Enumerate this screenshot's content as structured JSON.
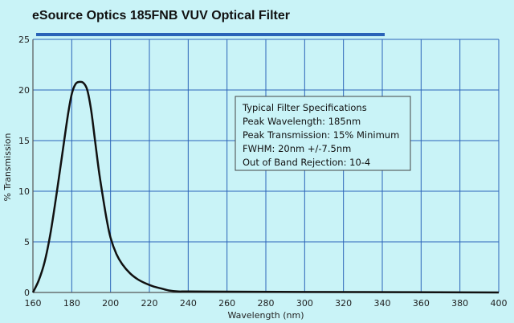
{
  "chart_data": {
    "type": "line",
    "title": "eSource Optics 185FNB VUV Optical Filter",
    "xlabel": "Wavelength (nm)",
    "ylabel": "% Transmission",
    "xlim": [
      160,
      400
    ],
    "ylim": [
      0,
      25
    ],
    "x_ticks": [
      160,
      180,
      200,
      220,
      240,
      260,
      280,
      300,
      320,
      340,
      360,
      380,
      400
    ],
    "y_ticks": [
      0,
      5,
      10,
      15,
      20,
      25
    ],
    "grid": true,
    "series": [
      {
        "x": [
          160,
          163,
          166,
          169,
          172,
          175,
          178,
          180,
          182,
          184,
          186,
          188,
          190,
          192,
          194,
          196,
          198,
          200,
          203,
          206,
          210,
          214,
          218,
          222,
          226,
          230,
          235,
          240,
          260,
          300,
          350,
          400
        ],
        "y": [
          0,
          1.2,
          3.0,
          5.8,
          9.5,
          13.5,
          17.5,
          19.6,
          20.6,
          20.8,
          20.7,
          20.0,
          18.0,
          15.0,
          12.0,
          9.5,
          7.2,
          5.4,
          3.8,
          2.8,
          1.9,
          1.3,
          0.9,
          0.6,
          0.4,
          0.2,
          0.1,
          0.1,
          0.08,
          0.05,
          0.03,
          0
        ]
      }
    ],
    "annotation": {
      "lines": [
        "Typical Filter Specifications",
        "Peak Wavelength: 185nm",
        "Peak Transmission: 15% Minimum",
        "FWHM: 20nm +/-7.5nm",
        "Out of Band Rejection: 10-4"
      ]
    }
  },
  "colors": {
    "background": "#c9f3f7",
    "grid": "#2a63b8",
    "axis": "#555555",
    "curve": "#111111",
    "title_bar": "#2a63b8"
  }
}
